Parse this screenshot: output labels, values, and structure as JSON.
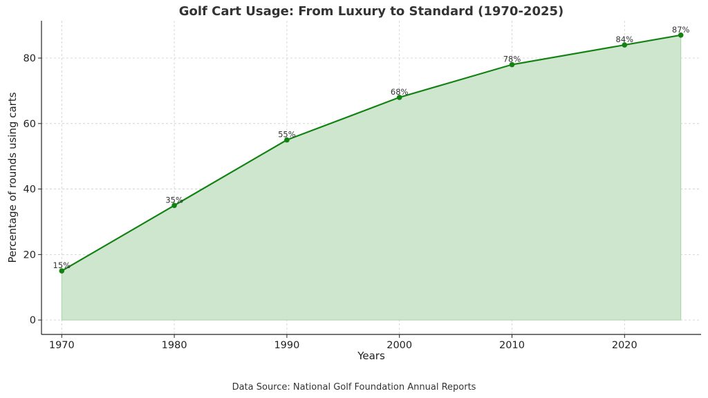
{
  "chart_data": {
    "type": "area",
    "title": "Golf Cart Usage: From Luxury to Standard (1970-2025)",
    "xlabel": "Years",
    "ylabel": "Percentage of rounds using carts",
    "source": "Data Source: National Golf Foundation Annual Reports",
    "x": [
      1970,
      1980,
      1990,
      2000,
      2010,
      2020,
      2025
    ],
    "values": [
      15,
      35,
      55,
      68,
      78,
      84,
      87
    ],
    "point_labels": [
      "15%",
      "35%",
      "55%",
      "68%",
      "78%",
      "84%",
      "87%"
    ],
    "x_ticks": [
      1970,
      1980,
      1990,
      2000,
      2010,
      2020
    ],
    "x_tick_labels": [
      "1970",
      "1980",
      "1990",
      "2000",
      "2010",
      "2020"
    ],
    "y_ticks": [
      0,
      20,
      40,
      60,
      80
    ],
    "y_tick_labels": [
      "0",
      "20",
      "40",
      "60",
      "80"
    ],
    "xlim": [
      1968.2,
      2026.8
    ],
    "ylim": [
      -4.4,
      91.4
    ],
    "grid": true,
    "line_color": "#138213",
    "fill_color": "#cde6cd",
    "fill_edge_color": "#a9d3a9"
  }
}
